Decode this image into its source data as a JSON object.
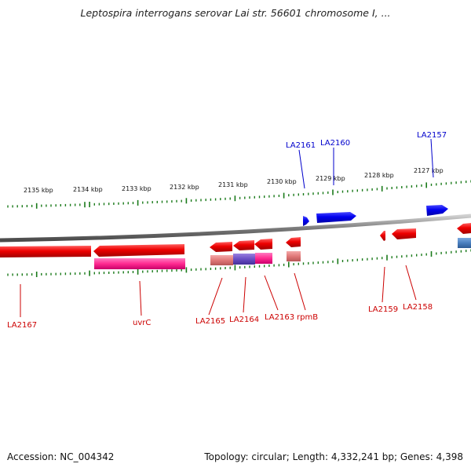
{
  "title": "Leptospira interrogans serovar Lai str. 56601 chromosome I, ...",
  "footer": {
    "accession": "Accession: NC_004342",
    "topology": "Topology: circular; Length: 4,332,241 bp; Genes: 4,398"
  },
  "scale_labels": [
    "2135 kbp",
    "2134 kbp",
    "2133 kbp",
    "2132 kbp",
    "2131 kbp",
    "2130 kbp",
    "2129 kbp",
    "2128 kbp",
    "2127 kbp"
  ],
  "genes_top": [
    "LA2161",
    "LA2160",
    "LA2157"
  ],
  "genes_bottom": [
    "LA2167",
    "uvrC",
    "LA2165",
    "LA2164",
    "LA2163",
    "rpmB",
    "LA2159",
    "LA2158"
  ],
  "colors": {
    "forward_gene": "#0000ee",
    "reverse_gene": "#ee0000",
    "tick": "#1a7a1a",
    "backbone": "#808080",
    "cds_pink": "#ff3399",
    "cds_salmon": "#e88080",
    "cds_violet": "#7050c0",
    "cds_steel": "#4a7fbf"
  }
}
